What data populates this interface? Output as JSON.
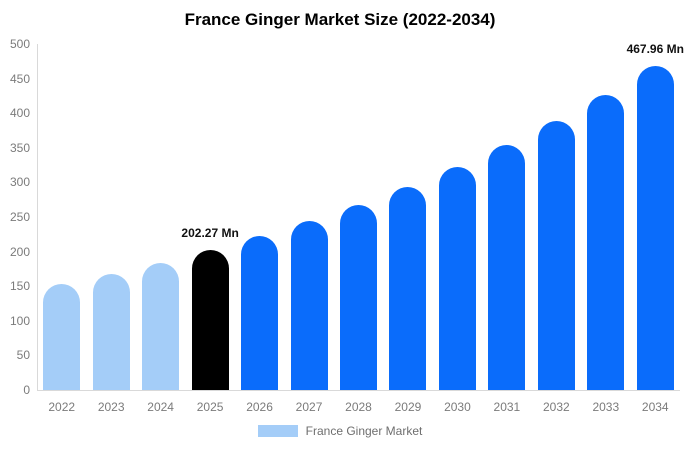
{
  "chart_data": {
    "type": "bar",
    "title": "France Ginger Market Size (2022-2034)",
    "unit": "Mn",
    "categories": [
      "2022",
      "2023",
      "2024",
      "2025",
      "2026",
      "2027",
      "2028",
      "2029",
      "2030",
      "2031",
      "2032",
      "2033",
      "2034"
    ],
    "values": [
      153,
      168,
      184,
      202.27,
      222,
      243.7,
      267.5,
      293.7,
      322.4,
      353.8,
      388.4,
      426.4,
      467.96
    ],
    "bar_roles": [
      "historical",
      "historical",
      "historical",
      "current",
      "forecast",
      "forecast",
      "forecast",
      "forecast",
      "forecast",
      "forecast",
      "forecast",
      "forecast",
      "forecast"
    ],
    "role_colors": {
      "historical": "#a4cdf8",
      "current": "#000000",
      "forecast": "#0a6cfb"
    },
    "xlabel": "",
    "ylabel": "",
    "ylim": [
      0,
      500
    ],
    "ytick_step": 50,
    "grid": false,
    "annotations": [
      {
        "category": "2025",
        "text": "202.27 Mn"
      },
      {
        "category": "2034",
        "text": "467.96 Mn"
      }
    ],
    "legend": [
      {
        "label": "France Ginger Market",
        "color": "#a4cdf8"
      }
    ],
    "legend_position": "bottom",
    "axis_color": "#d9d9d9",
    "tick_label_color": "#7b7b7b"
  }
}
